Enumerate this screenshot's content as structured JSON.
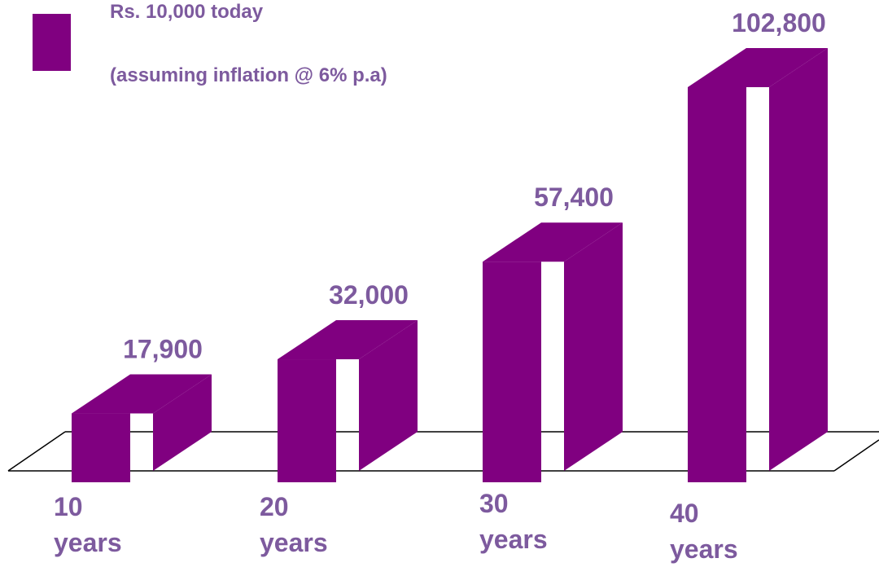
{
  "chart_data": {
    "type": "bar3d",
    "series": [
      {
        "name": "Rs. 10,000 today",
        "color": "#800080",
        "values": [
          17900,
          32000,
          57400,
          102800
        ],
        "value_labels": [
          "17,900",
          "32,000",
          "57,400",
          "102,800"
        ]
      }
    ],
    "subtitle": "(assuming inflation @ 6% p.a)",
    "categories": [
      "10 years",
      "20 years",
      "30 years",
      "40 years"
    ]
  }
}
